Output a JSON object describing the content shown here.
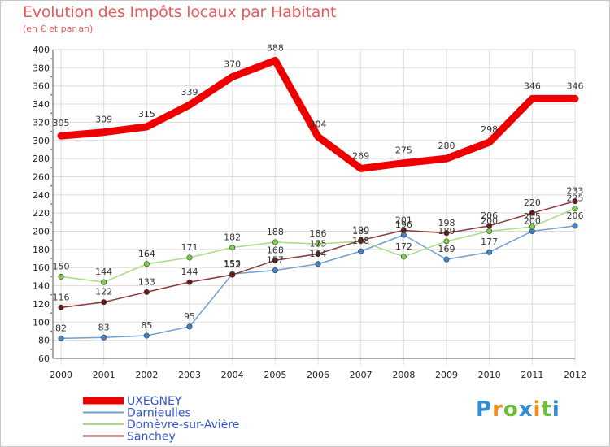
{
  "header": {
    "title": "Evolution des Impôts locaux par Habitant",
    "subtitle": "(en € et par an)"
  },
  "logo": {
    "text": "Proxiti",
    "letters": [
      {
        "ch": "P",
        "color": "#2e8fd6"
      },
      {
        "ch": "r",
        "color": "#f08c1e"
      },
      {
        "ch": "o",
        "color": "#6cbe3a"
      },
      {
        "ch": "x",
        "color": "#2e8fd6"
      },
      {
        "ch": "i",
        "color": "#f08c1e"
      },
      {
        "ch": "t",
        "color": "#6cbe3a"
      },
      {
        "ch": "i",
        "color": "#2e8fd6"
      }
    ]
  },
  "chart_data": {
    "type": "line",
    "title": "Evolution des Impôts locaux par Habitant",
    "subtitle": "(en € et par an)",
    "xlabel": "",
    "ylabel": "",
    "x": [
      "2000",
      "2001",
      "2002",
      "2003",
      "2004",
      "2005",
      "2006",
      "2007",
      "2008",
      "2009",
      "2010",
      "2011",
      "2012"
    ],
    "ylim": [
      60,
      400
    ],
    "yticks": [
      60,
      80,
      100,
      120,
      140,
      160,
      180,
      200,
      220,
      240,
      260,
      280,
      300,
      320,
      340,
      360,
      380,
      400
    ],
    "grid": true,
    "legend_position": "bottom-left",
    "series": [
      {
        "name": "UXEGNEY",
        "color": "#ee0000",
        "width": 9,
        "marker": false,
        "values": [
          305,
          309,
          315,
          339,
          370,
          388,
          304,
          269,
          275,
          280,
          298,
          346,
          346
        ]
      },
      {
        "name": "Darnieulles",
        "color": "#6e9fd2",
        "width": 1.5,
        "marker": true,
        "markerColor": "#3f86cf",
        "values": [
          82,
          83,
          85,
          95,
          153,
          157,
          164,
          178,
          196,
          169,
          177,
          200,
          206
        ]
      },
      {
        "name": "Domèvre-sur-Avière",
        "color": "#a8dc82",
        "width": 1.5,
        "marker": true,
        "markerColor": "#7fcf4a",
        "values": [
          150,
          144,
          164,
          171,
          182,
          188,
          186,
          189,
          172,
          189,
          200,
          205,
          225
        ]
      },
      {
        "name": "Sanchey",
        "color": "#8a3a3a",
        "width": 1.5,
        "marker": true,
        "markerColor": "#6b1a1a",
        "values": [
          116,
          122,
          133,
          144,
          152,
          168,
          175,
          190,
          201,
          198,
          206,
          220,
          233
        ]
      }
    ]
  }
}
